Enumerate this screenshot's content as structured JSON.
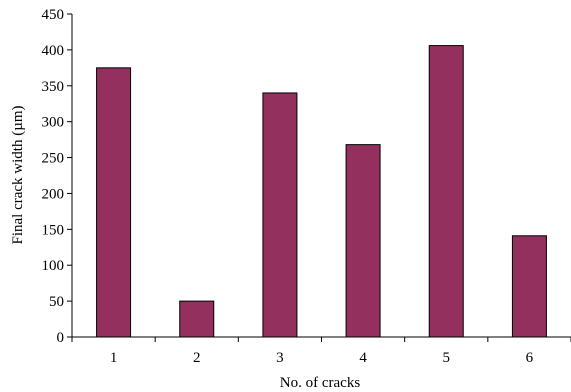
{
  "chart_data": {
    "type": "bar",
    "title": "",
    "xlabel": "No. of cracks",
    "ylabel": "Final crack width (µm)",
    "categories": [
      "1",
      "2",
      "3",
      "4",
      "5",
      "6"
    ],
    "values": [
      375,
      50,
      340,
      268,
      406,
      141
    ],
    "ylim": [
      0,
      450
    ],
    "yticks": [
      0,
      50,
      100,
      150,
      200,
      250,
      300,
      350,
      400,
      450
    ],
    "grid": false,
    "legend": "none",
    "bar_color": "#94305E",
    "bar_edge_color": "#000000"
  }
}
